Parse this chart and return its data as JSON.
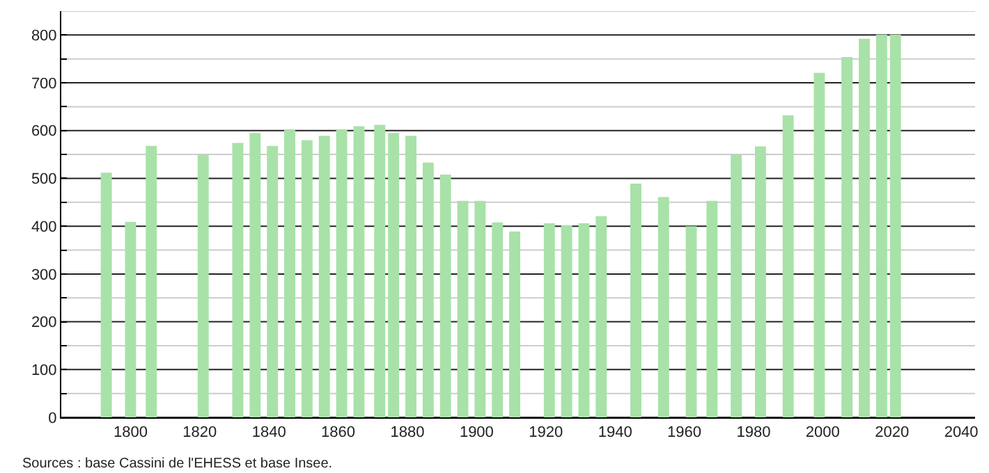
{
  "chart_data": {
    "type": "bar",
    "x": [
      1793,
      1800,
      1806,
      1821,
      1831,
      1836,
      1841,
      1846,
      1851,
      1856,
      1861,
      1866,
      1872,
      1876,
      1881,
      1886,
      1891,
      1896,
      1901,
      1906,
      1911,
      1921,
      1926,
      1931,
      1936,
      1946,
      1954,
      1962,
      1968,
      1975,
      1982,
      1990,
      1999,
      2007,
      2012,
      2017,
      2021
    ],
    "values": [
      512,
      409,
      568,
      549,
      574,
      595,
      568,
      601,
      580,
      589,
      603,
      609,
      612,
      595,
      589,
      533,
      508,
      453,
      453,
      408,
      389,
      406,
      402,
      406,
      421,
      489,
      461,
      400,
      453,
      549,
      567,
      632,
      721,
      754,
      792,
      801,
      801
    ],
    "color": "#a8e2a8",
    "xlim": [
      1780,
      2044
    ],
    "xticks": [
      1800,
      1820,
      1840,
      1860,
      1880,
      1900,
      1920,
      1940,
      1960,
      1980,
      2000,
      2020,
      2040
    ],
    "ylim": [
      0,
      850
    ],
    "yticks": [
      0,
      {
        "value": 50,
        "label": null
      },
      100,
      {
        "value": 150,
        "label": null
      },
      200,
      {
        "value": 250,
        "label": null
      },
      300,
      {
        "value": 350,
        "label": null
      },
      400,
      {
        "value": 450,
        "label": null
      },
      500,
      {
        "value": 550,
        "label": null
      },
      600,
      {
        "value": 650,
        "label": null
      },
      700,
      {
        "value": 750,
        "label": null
      },
      800,
      {
        "value": 850,
        "label": null
      }
    ],
    "grid": "y",
    "legend": false,
    "annotations": [
      "Sources : base Cassini de l'EHESS et base Insee."
    ]
  }
}
